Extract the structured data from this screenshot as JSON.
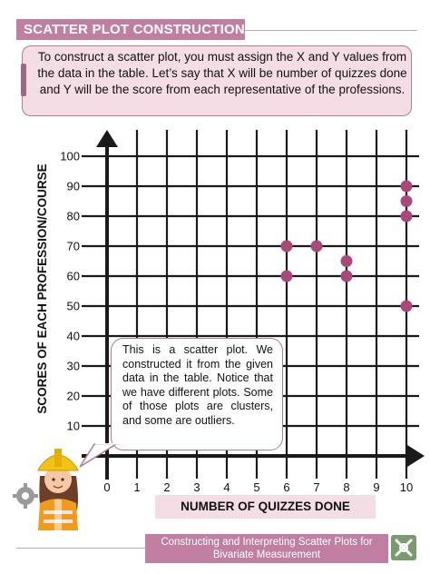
{
  "header": {
    "title": "SCATTER PLOT CONSTRUCTION"
  },
  "intro": {
    "text": "To construct a scatter plot, you must assign the X and Y values from the data in the table. Let’s say that X will be number of quizzes done and Y will be the score from each representative of the professions."
  },
  "callout": {
    "text": "This is a scatter plot. We constructed it from the given data in the table. Notice that we have different plots. Some of those plots are clusters, and some are outliers."
  },
  "footer": {
    "text": "Constructing and Interpreting Scatter Plots for Bivariate Measurement"
  },
  "colors": {
    "accent": "#c07ea0",
    "light_accent": "#f4dde5",
    "point": "#a8497a",
    "grid": "#1a1a1a"
  },
  "icons": {
    "worker": "construction-worker-icon",
    "gear": "gear-icon",
    "logo": "tools-logo-icon"
  },
  "chart_data": {
    "type": "scatter",
    "xlabel": "NUMBER OF QUIZZES DONE",
    "ylabel": "SCORES OF EACH PROFESSION/COURSE",
    "xlim": [
      0,
      10
    ],
    "ylim": [
      0,
      100
    ],
    "x_ticks": [
      "0",
      "1",
      "2",
      "3",
      "4",
      "5",
      "6",
      "7",
      "8",
      "9",
      "10"
    ],
    "y_ticks": [
      "10",
      "20",
      "30",
      "40",
      "50",
      "60",
      "70",
      "80",
      "90",
      "100"
    ],
    "grid": true,
    "points": [
      {
        "x": 6,
        "y": 70
      },
      {
        "x": 6,
        "y": 60
      },
      {
        "x": 7,
        "y": 70
      },
      {
        "x": 8,
        "y": 65
      },
      {
        "x": 8,
        "y": 60
      },
      {
        "x": 10,
        "y": 90
      },
      {
        "x": 10,
        "y": 85
      },
      {
        "x": 10,
        "y": 80
      },
      {
        "x": 10,
        "y": 50
      }
    ]
  }
}
